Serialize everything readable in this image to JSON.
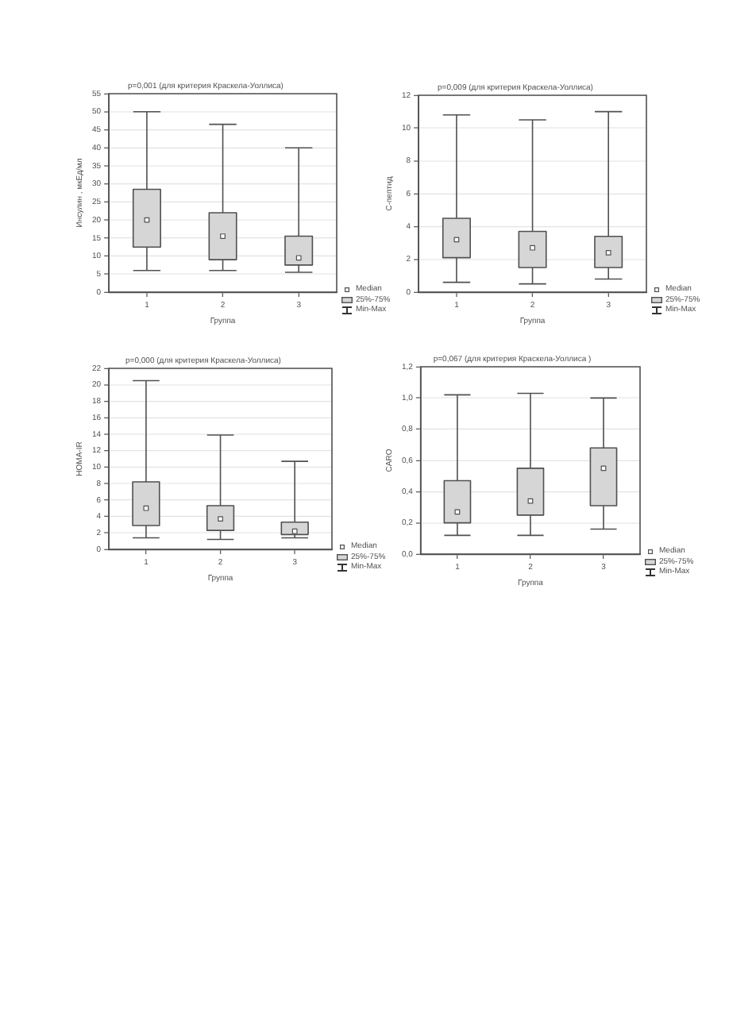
{
  "chart_data": [
    {
      "type": "box",
      "title": "p=0,001 (для критерия Краскела-Уоллиса)",
      "xlabel": "Группа",
      "ylabel": "Инсулин , мкЕд/мл",
      "categories": [
        "1",
        "2",
        "3"
      ],
      "color": "#d6d6d6",
      "marker": "square",
      "boxes": [
        {
          "low": 6,
          "q1": 12.5,
          "median": 20,
          "q3": 28.5,
          "high": 50
        },
        {
          "low": 6,
          "q1": 9,
          "median": 15.5,
          "q3": 22,
          "high": 46.5
        },
        {
          "low": 5.5,
          "q1": 7.5,
          "median": 9.5,
          "q3": 15.5,
          "high": 40
        }
      ],
      "ylim": [
        0,
        55
      ],
      "yticks": [
        0,
        5,
        10,
        15,
        20,
        25,
        30,
        35,
        40,
        45,
        50,
        55
      ],
      "grid": "y",
      "annotations": [
        "Median",
        "25%-75%",
        "Min-Max"
      ]
    },
    {
      "type": "box",
      "title": "p=0,009 (для критерия Краскела-Уоллиса)",
      "xlabel": "Группа",
      "ylabel": "С-пептид",
      "categories": [
        "1",
        "2",
        "3"
      ],
      "color": "#d6d6d6",
      "marker": "square",
      "boxes": [
        {
          "low": 0.6,
          "q1": 2.1,
          "median": 3.2,
          "q3": 4.5,
          "high": 10.8
        },
        {
          "low": 0.5,
          "q1": 1.5,
          "median": 2.7,
          "q3": 3.7,
          "high": 10.5
        },
        {
          "low": 0.8,
          "q1": 1.5,
          "median": 2.4,
          "q3": 3.4,
          "high": 11
        }
      ],
      "ylim": [
        0,
        12
      ],
      "yticks": [
        0,
        2,
        4,
        6,
        8,
        10,
        12
      ],
      "grid": "y",
      "annotations": [
        "Median",
        "25%-75%",
        "Min-Max"
      ]
    },
    {
      "type": "box",
      "title": "p=0,000 (для критерия Краскела-Уоллиса)",
      "xlabel": "Группа",
      "ylabel": "HOMA-IR",
      "categories": [
        "1",
        "2",
        "3"
      ],
      "color": "#d6d6d6",
      "marker": "square",
      "boxes": [
        {
          "low": 1.4,
          "q1": 2.9,
          "median": 5,
          "q3": 8.2,
          "high": 20.5
        },
        {
          "low": 1.2,
          "q1": 2.3,
          "median": 3.7,
          "q3": 5.3,
          "high": 13.9
        },
        {
          "low": 1.4,
          "q1": 1.8,
          "median": 2.2,
          "q3": 3.3,
          "high": 10.7
        }
      ],
      "ylim": [
        0,
        22
      ],
      "yticks": [
        0,
        2,
        4,
        6,
        8,
        10,
        12,
        14,
        16,
        18,
        20,
        22
      ],
      "grid": "y",
      "annotations": [
        "Median",
        "25%-75%",
        "Min-Max"
      ]
    },
    {
      "type": "box",
      "title": "p=0,067 (для критерия Краскела-Уоллиса )",
      "xlabel": "Группа",
      "ylabel": "CARO",
      "categories": [
        "1",
        "2",
        "3"
      ],
      "color": "#d6d6d6",
      "marker": "square",
      "boxes": [
        {
          "low": 0.12,
          "q1": 0.2,
          "median": 0.27,
          "q3": 0.47,
          "high": 1.02
        },
        {
          "low": 0.12,
          "q1": 0.25,
          "median": 0.34,
          "q3": 0.55,
          "high": 1.03
        },
        {
          "low": 0.16,
          "q1": 0.31,
          "median": 0.55,
          "q3": 0.68,
          "high": 1
        }
      ],
      "ylim": [
        0,
        1.2
      ],
      "yticks": [
        {
          "value": 0,
          "label": "0,0"
        },
        {
          "value": 0.2,
          "label": "0,2"
        },
        {
          "value": 0.4,
          "label": "0,4"
        },
        {
          "value": 0.6,
          "label": "0,6"
        },
        {
          "value": 0.8,
          "label": "0,8"
        },
        {
          "value": 1,
          "label": "1,0"
        },
        {
          "value": 1.2,
          "label": "1,2"
        }
      ],
      "grid": "y",
      "annotations": [
        "Median",
        "25%-75%",
        "Min-Max"
      ]
    }
  ]
}
